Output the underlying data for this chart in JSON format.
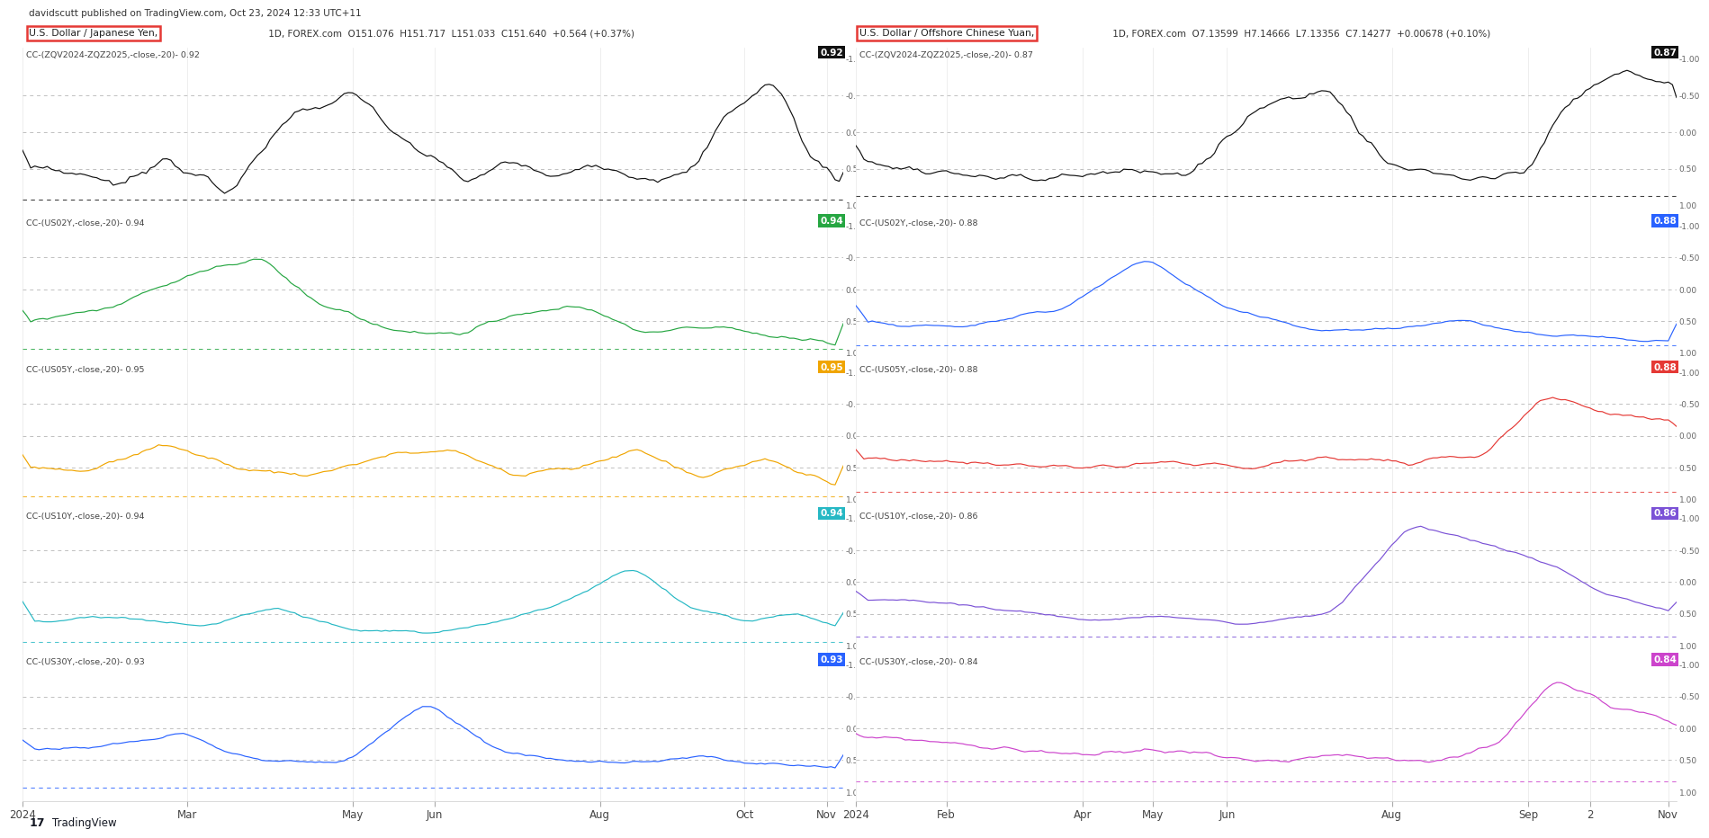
{
  "background_color": "#ffffff",
  "header_text": "davidscutt published on TradingView.com, Oct 23, 2024 12:33 UTC+11",
  "left_panel": {
    "title": "U.S. Dollar / Japanese Yen,",
    "title_suffix": " 1D, FOREX.com  O151.076  H151.717  L151.033  C151.640  +0.564 (+0.37%)",
    "x_tick_labels": [
      "2024",
      "Mar",
      "May",
      "Jun",
      "Aug",
      "Oct",
      "Nov"
    ],
    "x_tick_positions": [
      0,
      40,
      80,
      100,
      140,
      175,
      195
    ],
    "series": [
      {
        "label": "CC-(ZQV2024-ZQZ2025,-close,-20)- 0.92",
        "color": "#111111",
        "value_label": "0.92",
        "value_bg": "#111111"
      },
      {
        "label": "CC-(US02Y,-close,-20)- 0.94",
        "color": "#26a642",
        "value_label": "0.94",
        "value_bg": "#26a642"
      },
      {
        "label": "CC-(US05Y,-close,-20)- 0.95",
        "color": "#f0a500",
        "value_label": "0.95",
        "value_bg": "#f0a500"
      },
      {
        "label": "CC-(US10Y,-close,-20)- 0.94",
        "color": "#26b8c4",
        "value_label": "0.94",
        "value_bg": "#26b8c4"
      },
      {
        "label": "CC-(US30Y,-close,-20)- 0.93",
        "color": "#2962ff",
        "value_label": "0.93",
        "value_bg": "#2962ff"
      }
    ]
  },
  "right_panel": {
    "title": "U.S. Dollar / Offshore Chinese Yuan,",
    "title_suffix": " 1D, FOREX.com  O7.13599  H7.14666  L7.13356  C7.14277  +0.00678 (+0.10%)",
    "x_tick_labels": [
      "2024",
      "Feb",
      "Apr",
      "May",
      "Jun",
      "Aug",
      "Sep",
      "2",
      "Nov"
    ],
    "x_tick_positions": [
      0,
      22,
      55,
      72,
      90,
      130,
      163,
      178,
      197
    ],
    "series": [
      {
        "label": "CC-(ZQV2024-ZQZ2025,-close,-20)- 0.87",
        "color": "#111111",
        "value_label": "0.87",
        "value_bg": "#111111"
      },
      {
        "label": "CC-(US02Y,-close,-20)- 0.88",
        "color": "#2962ff",
        "value_label": "0.88",
        "value_bg": "#2962ff"
      },
      {
        "label": "CC-(US05Y,-close,-20)- 0.88",
        "color": "#e53935",
        "value_label": "0.88",
        "value_bg": "#e53935"
      },
      {
        "label": "CC-(US10Y,-close,-20)- 0.86",
        "color": "#7b52d6",
        "value_label": "0.86",
        "value_bg": "#7b52d6"
      },
      {
        "label": "CC-(US30Y,-close,-20)- 0.84",
        "color": "#cc44cc",
        "value_label": "0.84",
        "value_bg": "#cc44cc"
      }
    ]
  },
  "dashed_line_color": "#c0c0c0",
  "grid_color": "#e8e8e8",
  "tradingview_text": "TradingView"
}
